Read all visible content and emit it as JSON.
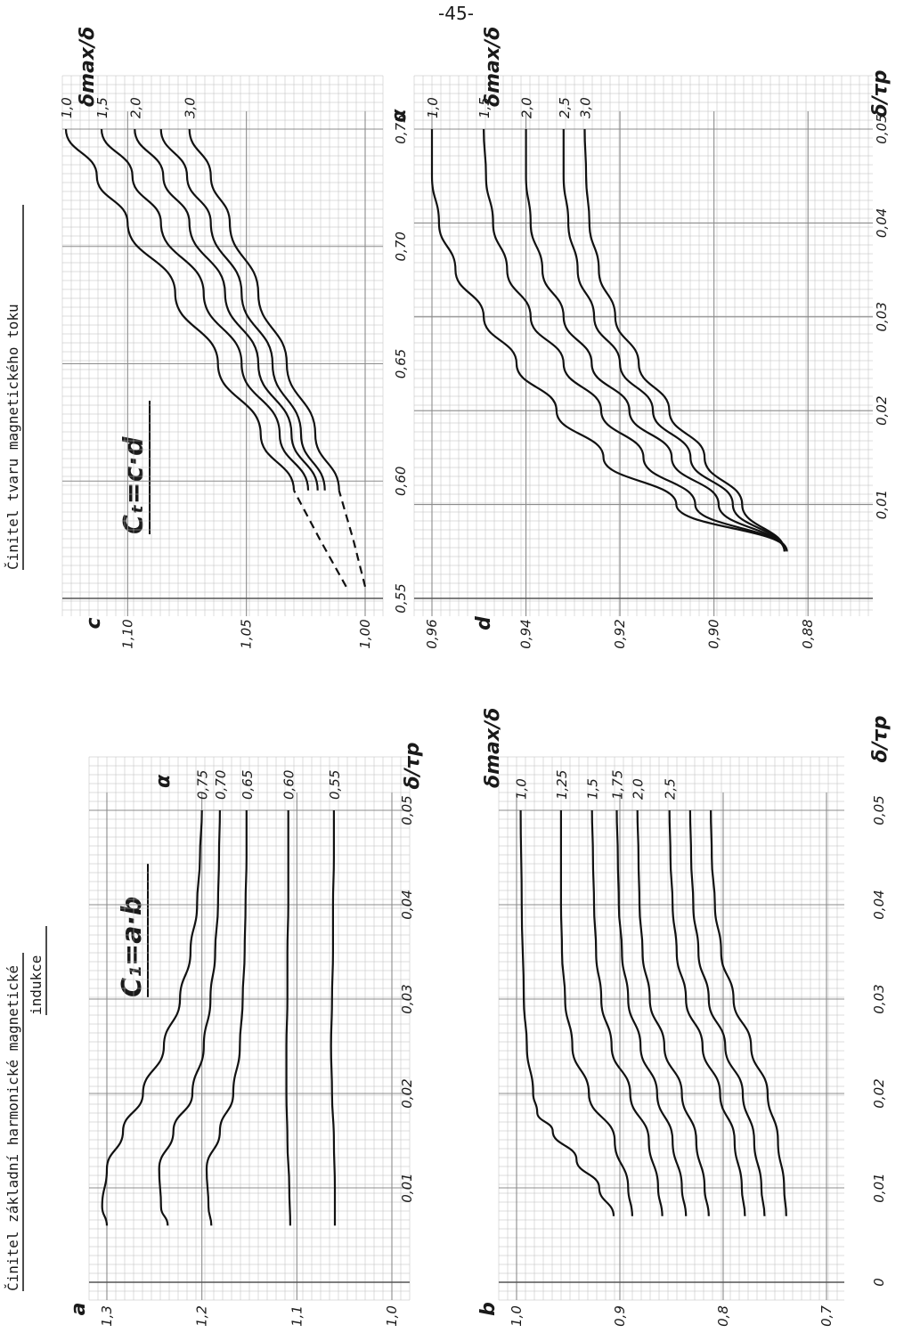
{
  "page_number": "-45-",
  "titles": {
    "left_line1": "Činitel  základní harmonické magnetické",
    "left_line2": "indukce",
    "right": "Činitel tvaru magnetického toku"
  },
  "formulas": {
    "left": "C₁=a·b",
    "right": "Cₜ=c·d"
  },
  "colors": {
    "grid": "#bcbcbc",
    "grid_major": "#8c8c8c",
    "ink": "#111111"
  },
  "chart_data": [
    {
      "id": "a",
      "type": "line",
      "orientation": "rotated 90° counter-clockwise",
      "ylabel": "a",
      "xlabel": "δ/τp",
      "legend_title": "α",
      "xlim": [
        0,
        0.05
      ],
      "ylim": [
        1.0,
        1.3
      ],
      "x_ticks": [
        "0,01",
        "0,02",
        "0,03",
        "0,04",
        "0,05"
      ],
      "x_tick_values": [
        0.01,
        0.02,
        0.03,
        0.04,
        0.05
      ],
      "y_ticks": [
        "1,0",
        "1,1",
        "1,2",
        "1,3"
      ],
      "y_tick_values": [
        1.0,
        1.1,
        1.2,
        1.3
      ],
      "series": [
        {
          "name": "0,75",
          "x": [
            0.006,
            0.008,
            0.012,
            0.016,
            0.02,
            0.025,
            0.03,
            0.035,
            0.04,
            0.045,
            0.05
          ],
          "y": [
            1.3,
            1.305,
            1.3,
            1.283,
            1.262,
            1.24,
            1.223,
            1.212,
            1.205,
            1.202,
            1.2
          ]
        },
        {
          "name": "0,70",
          "x": [
            0.006,
            0.008,
            0.012,
            0.016,
            0.02,
            0.025,
            0.03,
            0.035,
            0.04,
            0.045,
            0.05
          ],
          "y": [
            1.236,
            1.243,
            1.245,
            1.23,
            1.21,
            1.198,
            1.191,
            1.186,
            1.183,
            1.182,
            1.181
          ]
        },
        {
          "name": "0,65",
          "x": [
            0.006,
            0.008,
            0.012,
            0.016,
            0.02,
            0.025,
            0.03,
            0.035,
            0.04,
            0.045,
            0.05
          ],
          "y": [
            1.19,
            1.193,
            1.195,
            1.181,
            1.167,
            1.16,
            1.157,
            1.155,
            1.154,
            1.153,
            1.153
          ]
        },
        {
          "name": "0,60",
          "x": [
            0.006,
            0.01,
            0.015,
            0.02,
            0.025,
            0.03,
            0.035,
            0.04,
            0.045,
            0.05
          ],
          "y": [
            1.107,
            1.108,
            1.11,
            1.111,
            1.111,
            1.11,
            1.11,
            1.109,
            1.109,
            1.109
          ]
        },
        {
          "name": "0,55",
          "x": [
            0.006,
            0.01,
            0.015,
            0.02,
            0.025,
            0.03,
            0.035,
            0.04,
            0.045,
            0.05
          ],
          "y": [
            1.06,
            1.06,
            1.061,
            1.063,
            1.064,
            1.063,
            1.062,
            1.062,
            1.061,
            1.061
          ]
        }
      ]
    },
    {
      "id": "b",
      "type": "line",
      "orientation": "rotated 90° counter-clockwise",
      "ylabel": "b",
      "xlabel": "δ/τp",
      "legend_title": "δmax/δ",
      "xlim": [
        0,
        0.05
      ],
      "ylim": [
        0.7,
        1.0
      ],
      "x_ticks": [
        "0",
        "0,01",
        "0,02",
        "0,03",
        "0,04",
        "0,05"
      ],
      "x_tick_values": [
        0,
        0.01,
        0.02,
        0.03,
        0.04,
        0.05
      ],
      "y_ticks": [
        "0,7",
        "0,8",
        "0,9",
        "1,0"
      ],
      "y_tick_values": [
        0.7,
        0.8,
        0.9,
        1.0
      ],
      "series": [
        {
          "name": "1,0",
          "x": [
            0.007,
            0.01,
            0.013,
            0.016,
            0.018,
            0.02,
            0.025,
            0.03,
            0.04,
            0.05
          ],
          "y": [
            0.906,
            0.92,
            0.942,
            0.965,
            0.98,
            0.984,
            0.99,
            0.993,
            0.995,
            0.996
          ]
        },
        {
          "name": "1,25",
          "x": [
            0.007,
            0.01,
            0.015,
            0.02,
            0.025,
            0.03,
            0.035,
            0.04,
            0.045,
            0.05
          ],
          "y": [
            0.888,
            0.892,
            0.905,
            0.93,
            0.946,
            0.953,
            0.956,
            0.957,
            0.957,
            0.957
          ]
        },
        {
          "name": "1,5",
          "x": [
            0.007,
            0.01,
            0.015,
            0.02,
            0.025,
            0.03,
            0.035,
            0.04,
            0.045,
            0.05
          ],
          "y": [
            0.859,
            0.863,
            0.872,
            0.89,
            0.908,
            0.918,
            0.923,
            0.925,
            0.926,
            0.927
          ]
        },
        {
          "name": "1,75",
          "x": [
            0.007,
            0.01,
            0.015,
            0.02,
            0.025,
            0.03,
            0.035,
            0.04,
            0.045,
            0.05
          ],
          "y": [
            0.836,
            0.84,
            0.849,
            0.864,
            0.88,
            0.892,
            0.898,
            0.901,
            0.902,
            0.903
          ]
        },
        {
          "name": "2,0",
          "x": [
            0.007,
            0.01,
            0.015,
            0.02,
            0.025,
            0.03,
            0.035,
            0.04,
            0.045,
            0.05
          ],
          "y": [
            0.814,
            0.818,
            0.826,
            0.84,
            0.857,
            0.871,
            0.878,
            0.881,
            0.882,
            0.883
          ]
        },
        {
          "name": "2,5",
          "x": [
            0.007,
            0.01,
            0.015,
            0.02,
            0.025,
            0.03,
            0.035,
            0.04,
            0.045,
            0.05
          ],
          "y": [
            0.779,
            0.782,
            0.789,
            0.803,
            0.82,
            0.836,
            0.845,
            0.849,
            0.851,
            0.852
          ]
        },
        {
          "name": "",
          "x": [
            0.007,
            0.01,
            0.015,
            0.02,
            0.025,
            0.03,
            0.035,
            0.04,
            0.045,
            0.05
          ],
          "y": [
            0.76,
            0.763,
            0.77,
            0.781,
            0.798,
            0.814,
            0.824,
            0.829,
            0.831,
            0.832
          ]
        },
        {
          "name": "",
          "x": [
            0.007,
            0.01,
            0.015,
            0.02,
            0.025,
            0.03,
            0.035,
            0.04,
            0.045,
            0.05
          ],
          "y": [
            0.739,
            0.741,
            0.747,
            0.757,
            0.773,
            0.79,
            0.802,
            0.808,
            0.811,
            0.812
          ]
        }
      ]
    },
    {
      "id": "c",
      "type": "line",
      "orientation": "rotated 90° counter-clockwise",
      "ylabel": "c",
      "xlabel": "α",
      "legend_title": "δmax/δ",
      "xlim": [
        0.55,
        0.75
      ],
      "ylim": [
        1.0,
        1.12
      ],
      "x_ticks": [
        "0,55",
        "0,60",
        "0,65",
        "0,70",
        "0,75"
      ],
      "x_tick_values": [
        0.55,
        0.6,
        0.65,
        0.7,
        0.75
      ],
      "y_ticks": [
        "1,00",
        "1,05",
        "1,10"
      ],
      "y_tick_values": [
        1.0,
        1.05,
        1.1
      ],
      "series": [
        {
          "name": "1,0",
          "x": [
            0.596,
            0.62,
            0.65,
            0.68,
            0.71,
            0.73,
            0.75
          ],
          "y": [
            1.03,
            1.044,
            1.062,
            1.08,
            1.1,
            1.113,
            1.126
          ]
        },
        {
          "name": "1,5",
          "x": [
            0.596,
            0.62,
            0.65,
            0.68,
            0.71,
            0.73,
            0.75
          ],
          "y": [
            1.024,
            1.036,
            1.052,
            1.068,
            1.086,
            1.098,
            1.111
          ]
        },
        {
          "name": "2,0",
          "x": [
            0.596,
            0.62,
            0.65,
            0.68,
            0.71,
            0.73,
            0.75
          ],
          "y": [
            1.02,
            1.031,
            1.045,
            1.059,
            1.074,
            1.085,
            1.097
          ]
        },
        {
          "name": "",
          "x": [
            0.596,
            0.62,
            0.65,
            0.68,
            0.71,
            0.73,
            0.75
          ],
          "y": [
            1.017,
            1.027,
            1.039,
            1.052,
            1.065,
            1.075,
            1.086
          ]
        },
        {
          "name": "3,0",
          "x": [
            0.596,
            0.62,
            0.65,
            0.68,
            0.71,
            0.73,
            0.75
          ],
          "y": [
            1.011,
            1.021,
            1.033,
            1.045,
            1.057,
            1.065,
            1.074
          ]
        }
      ],
      "dashed_extrapolation": [
        {
          "x": [
            0.555,
            0.575,
            0.596
          ],
          "y": [
            1.008,
            1.019,
            1.03
          ]
        },
        {
          "x": [
            0.555,
            0.575,
            0.596
          ],
          "y": [
            1.0,
            1.005,
            1.011
          ]
        }
      ]
    },
    {
      "id": "d",
      "type": "line",
      "orientation": "rotated 90° counter-clockwise",
      "ylabel": "d",
      "xlabel": "δ/τp",
      "legend_title": "δmax/δ",
      "xlim": [
        0,
        0.05
      ],
      "ylim": [
        0.87,
        0.96
      ],
      "x_ticks": [
        "0,01",
        "0,02",
        "0,03",
        "0,04",
        "0,05"
      ],
      "x_tick_values": [
        0.01,
        0.02,
        0.03,
        0.04,
        0.05
      ],
      "y_ticks": [
        "0,88",
        "0,90",
        "0,92",
        "0,94",
        "0,96"
      ],
      "y_tick_values": [
        0.88,
        0.9,
        0.92,
        0.94,
        0.96
      ],
      "series": [
        {
          "name": "1,0",
          "x": [
            0.005,
            0.01,
            0.015,
            0.02,
            0.025,
            0.03,
            0.035,
            0.04,
            0.045,
            0.05
          ],
          "y": [
            0.8845,
            0.908,
            0.9235,
            0.9335,
            0.942,
            0.949,
            0.955,
            0.9585,
            0.96,
            0.96
          ]
        },
        {
          "name": "1,5",
          "x": [
            0.005,
            0.01,
            0.015,
            0.02,
            0.025,
            0.03,
            0.035,
            0.04,
            0.045,
            0.05
          ],
          "y": [
            0.8845,
            0.904,
            0.915,
            0.924,
            0.932,
            0.939,
            0.944,
            0.947,
            0.9485,
            0.949
          ]
        },
        {
          "name": "2,0",
          "x": [
            0.005,
            0.01,
            0.015,
            0.02,
            0.025,
            0.03,
            0.035,
            0.04,
            0.045,
            0.05
          ],
          "y": [
            0.885,
            0.899,
            0.909,
            0.918,
            0.926,
            0.932,
            0.9365,
            0.939,
            0.94,
            0.94
          ]
        },
        {
          "name": "2,5",
          "x": [
            0.005,
            0.01,
            0.015,
            0.02,
            0.025,
            0.03,
            0.035,
            0.04,
            0.045,
            0.05
          ],
          "y": [
            0.885,
            0.896,
            0.905,
            0.913,
            0.92,
            0.9255,
            0.929,
            0.931,
            0.932,
            0.932
          ]
        },
        {
          "name": "3,0",
          "x": [
            0.005,
            0.01,
            0.015,
            0.02,
            0.025,
            0.03,
            0.035,
            0.04,
            0.045,
            0.05
          ],
          "y": [
            0.885,
            0.894,
            0.902,
            0.9095,
            0.916,
            0.921,
            0.9245,
            0.9265,
            0.9272,
            0.9275
          ]
        }
      ]
    }
  ]
}
